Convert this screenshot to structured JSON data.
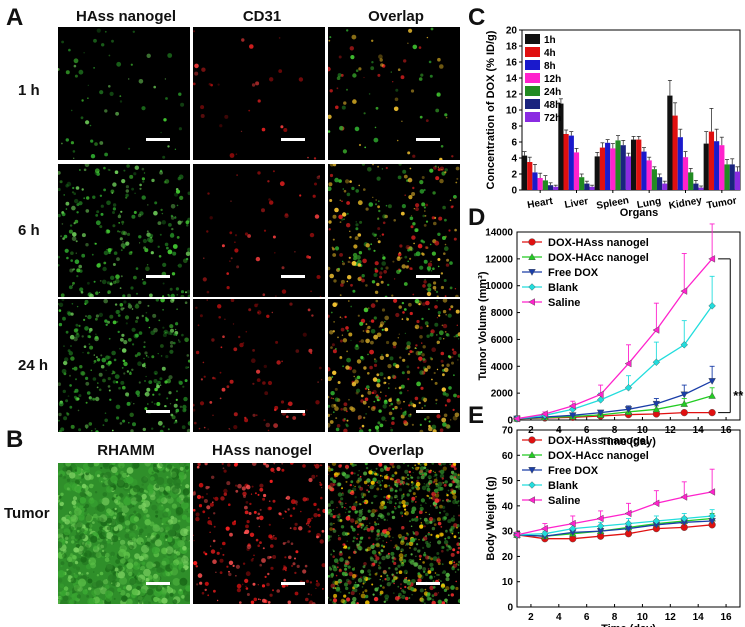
{
  "panelA": {
    "letter": "A",
    "columns": [
      "HAss nanogel",
      "CD31",
      "Overlap"
    ],
    "rows": [
      "1 h",
      "6 h",
      "24 h"
    ]
  },
  "panelB": {
    "letter": "B",
    "columns": [
      "RHAMM",
      "HAss nanogel",
      "Overlap"
    ],
    "row": "Tumor"
  },
  "panelLetters": {
    "C": "C",
    "D": "D",
    "E": "E"
  },
  "colors": {
    "green": "#2a9a2a",
    "red": "#e01010",
    "blue": "#1a1acc",
    "magenta": "#ff22cc",
    "cyan": "#22dddd",
    "black": "#111111",
    "navy": "#1a237e",
    "purple": "#8a2be2"
  },
  "chart_data": [
    {
      "id": "C",
      "type": "bar",
      "ylabel": "Concentration of DOX (% ID/g)",
      "xlabel": "Organs",
      "ylim": [
        0,
        20
      ],
      "yticks": [
        0,
        2,
        4,
        6,
        8,
        10,
        12,
        14,
        16,
        18,
        20
      ],
      "categories": [
        "Heart",
        "Liver",
        "Spleen",
        "Lung",
        "Kidney",
        "Tumor"
      ],
      "legend_position": "top-right",
      "series": [
        {
          "name": "1h",
          "color": "#111111",
          "values": [
            4.3,
            10.8,
            4.2,
            6.3,
            11.8,
            5.8
          ],
          "errors": [
            0.5,
            0.6,
            0.5,
            0.4,
            1.9,
            1.5
          ]
        },
        {
          "name": "4h",
          "color": "#e01010",
          "values": [
            3.5,
            7.0,
            5.3,
            6.3,
            9.3,
            7.3
          ],
          "errors": [
            0.6,
            0.5,
            0.6,
            0.4,
            1.6,
            2.9
          ]
        },
        {
          "name": "8h",
          "color": "#1a1acc",
          "values": [
            2.2,
            6.8,
            5.9,
            4.8,
            6.6,
            6.1
          ],
          "errors": [
            1.0,
            0.5,
            0.4,
            0.5,
            1.0,
            1.5
          ]
        },
        {
          "name": "12h",
          "color": "#ff22cc",
          "values": [
            1.5,
            4.7,
            5.2,
            3.7,
            4.1,
            5.6
          ],
          "errors": [
            0.6,
            0.5,
            0.6,
            0.4,
            0.7,
            1.0
          ]
        },
        {
          "name": "24h",
          "color": "#228b22",
          "values": [
            1.2,
            1.6,
            6.2,
            2.6,
            2.2,
            3.2
          ],
          "errors": [
            0.6,
            0.4,
            0.6,
            0.3,
            0.5,
            0.6
          ]
        },
        {
          "name": "48h",
          "color": "#1a237e",
          "values": [
            0.6,
            0.8,
            5.6,
            1.6,
            0.8,
            3.2
          ],
          "errors": [
            0.3,
            0.3,
            0.6,
            0.4,
            0.4,
            0.7
          ]
        },
        {
          "name": "72h",
          "color": "#8a2be2",
          "values": [
            0.4,
            0.4,
            4.2,
            0.8,
            0.3,
            2.3
          ],
          "errors": [
            0.2,
            0.2,
            0.4,
            0.3,
            0.2,
            0.6
          ]
        }
      ]
    },
    {
      "id": "D",
      "type": "line",
      "ylabel": "Tumor Volume (mm³)",
      "xlabel": "Time (day)",
      "xlim": [
        1,
        17
      ],
      "ylim": [
        0,
        14000
      ],
      "xticks": [
        2,
        4,
        6,
        8,
        10,
        12,
        14,
        16
      ],
      "yticks": [
        0,
        2000,
        4000,
        6000,
        8000,
        10000,
        12000,
        14000
      ],
      "x": [
        1,
        3,
        5,
        7,
        9,
        11,
        13,
        15
      ],
      "annotation": "**",
      "legend_position": "top-left",
      "series": [
        {
          "name": "DOX-HAss nanogel",
          "color": "#e01010",
          "marker": "circle",
          "values": [
            100,
            150,
            200,
            300,
            400,
            450,
            550,
            550
          ],
          "errors": [
            20,
            30,
            40,
            60,
            80,
            90,
            100,
            100
          ]
        },
        {
          "name": "DOX-HAcc nanogel",
          "color": "#22cc22",
          "marker": "triangle-up",
          "values": [
            100,
            180,
            260,
            380,
            600,
            800,
            1200,
            1800
          ],
          "errors": [
            20,
            40,
            60,
            80,
            150,
            250,
            400,
            600
          ]
        },
        {
          "name": "Free DOX",
          "color": "#1a3ea8",
          "marker": "triangle-down",
          "values": [
            100,
            220,
            350,
            550,
            800,
            1200,
            1900,
            2900
          ],
          "errors": [
            20,
            50,
            80,
            150,
            250,
            400,
            700,
            1100
          ]
        },
        {
          "name": "Blank",
          "color": "#22dddd",
          "marker": "diamond",
          "values": [
            100,
            350,
            800,
            1500,
            2400,
            4300,
            5600,
            8500
          ],
          "errors": [
            20,
            100,
            250,
            500,
            900,
            1500,
            1800,
            2200
          ]
        },
        {
          "name": "Saline",
          "color": "#ff22cc",
          "marker": "triangle-left",
          "values": [
            100,
            450,
            1050,
            1900,
            4200,
            6700,
            9600,
            12000
          ],
          "errors": [
            20,
            150,
            350,
            700,
            1400,
            2000,
            2800,
            2600
          ]
        }
      ]
    },
    {
      "id": "E",
      "type": "line",
      "ylabel": "Body Weight (g)",
      "xlabel": "Time (day)",
      "xlim": [
        1,
        17
      ],
      "ylim": [
        0,
        70
      ],
      "xticks": [
        2,
        4,
        6,
        8,
        10,
        12,
        14,
        16
      ],
      "yticks": [
        0,
        10,
        20,
        30,
        40,
        50,
        60,
        70
      ],
      "x": [
        1,
        3,
        5,
        7,
        9,
        11,
        13,
        15
      ],
      "legend_position": "top-left",
      "series": [
        {
          "name": "DOX-HAss nanogel",
          "color": "#e01010",
          "marker": "circle",
          "values": [
            28.5,
            27,
            27,
            28,
            29,
            31,
            31.5,
            32.5
          ],
          "errors": [
            1,
            1,
            1,
            1,
            1,
            1,
            1,
            1
          ]
        },
        {
          "name": "DOX-HAcc nanogel",
          "color": "#22cc22",
          "marker": "triangle-up",
          "values": [
            28.5,
            28,
            29,
            30,
            31.5,
            33,
            34,
            35
          ],
          "errors": [
            1,
            1,
            1,
            1.2,
            1.5,
            1.5,
            1.5,
            2
          ]
        },
        {
          "name": "Free DOX",
          "color": "#1a3ea8",
          "marker": "triangle-down",
          "values": [
            28.5,
            28,
            29.5,
            30,
            31,
            32.5,
            33.5,
            34
          ],
          "errors": [
            1,
            1,
            1,
            1,
            1.5,
            1.5,
            1.5,
            2
          ]
        },
        {
          "name": "Blank",
          "color": "#22dddd",
          "marker": "diamond",
          "values": [
            28.5,
            29,
            31,
            32,
            33,
            34,
            35,
            36
          ],
          "errors": [
            1,
            1,
            1.5,
            1.5,
            2,
            2,
            2,
            2.5
          ]
        },
        {
          "name": "Saline",
          "color": "#ff22cc",
          "marker": "triangle-left",
          "values": [
            28.5,
            31,
            33,
            35,
            37,
            41,
            43.5,
            45.5
          ],
          "errors": [
            1,
            2,
            3,
            3,
            4,
            5,
            6,
            9
          ]
        }
      ]
    }
  ]
}
